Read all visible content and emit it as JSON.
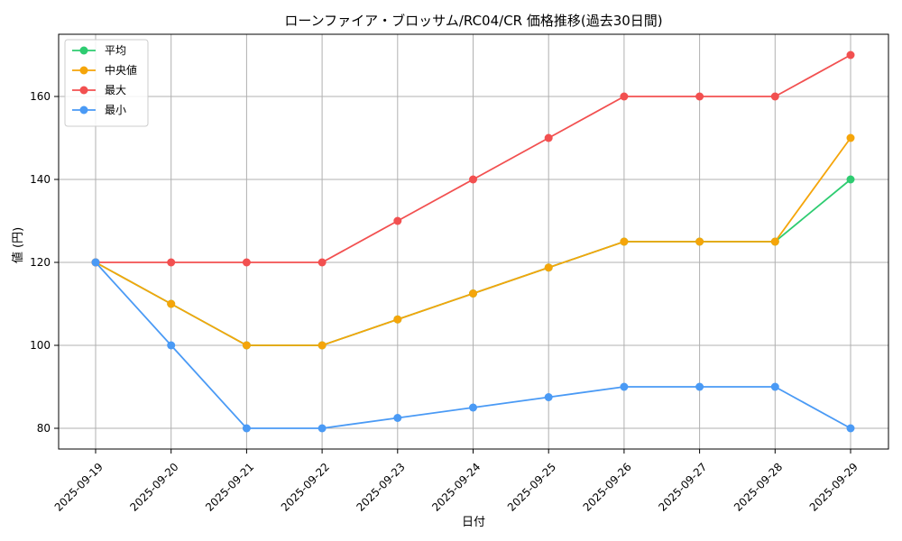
{
  "chart_data": {
    "type": "line",
    "title": "ローンファイア・ブロッサム/RC04/CR 価格推移(過去30日間)",
    "xlabel": "日付",
    "ylabel": "値 (円)",
    "x": [
      "2025-09-19",
      "2025-09-20",
      "2025-09-21",
      "2025-09-22",
      "2025-09-23",
      "2025-09-24",
      "2025-09-25",
      "2025-09-26",
      "2025-09-27",
      "2025-09-28",
      "2025-09-29"
    ],
    "ylim": [
      75,
      175
    ],
    "yticks": [
      80,
      100,
      120,
      140,
      160
    ],
    "grid": true,
    "legend_position": "top-left",
    "series": [
      {
        "name": "平均",
        "color": "#2ecc71",
        "values": [
          120,
          110,
          100,
          100,
          106.25,
          112.5,
          118.75,
          125,
          125,
          125,
          140
        ]
      },
      {
        "name": "中央値",
        "color": "#f5a50a",
        "values": [
          120,
          110,
          100,
          100,
          106.25,
          112.5,
          118.75,
          125,
          125,
          125,
          150
        ]
      },
      {
        "name": "最大",
        "color": "#f25050",
        "values": [
          120,
          120,
          120,
          120,
          130,
          140,
          150,
          160,
          160,
          160,
          170
        ]
      },
      {
        "name": "最小",
        "color": "#4a9af5",
        "values": [
          120,
          100,
          80,
          80,
          82.5,
          85,
          87.5,
          90,
          90,
          90,
          80
        ]
      }
    ]
  }
}
